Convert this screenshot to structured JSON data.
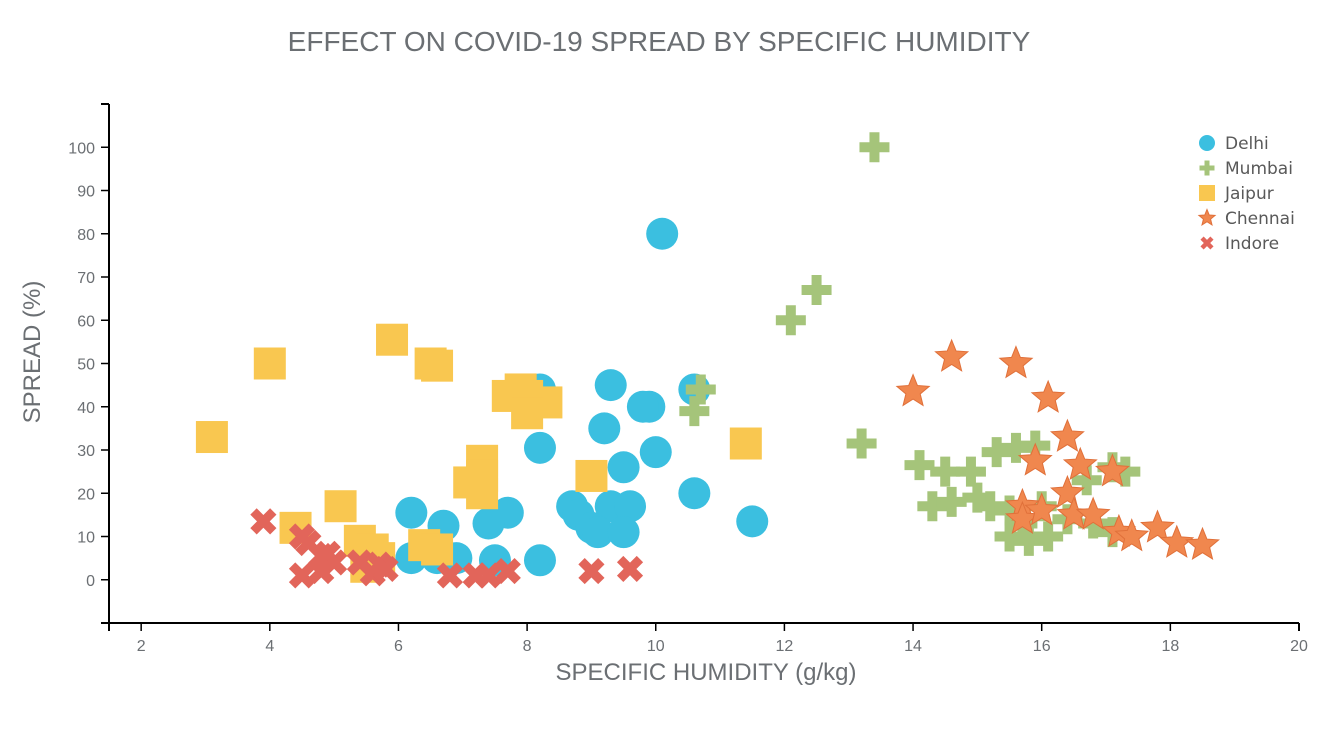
{
  "colors": {
    "Delhi": "#3bbfe0",
    "Mumbai": "#a5c47a",
    "Jaipur": "#f9c750",
    "Chennai": "#f0874e",
    "Indore": "#e2655a"
  },
  "chart_data": {
    "type": "scatter",
    "title": "EFFECT ON COVID-19 SPREAD BY SPECIFIC HUMIDITY",
    "xlabel": "SPECIFIC HUMIDITY (g/kg)",
    "ylabel": "SPREAD (%)",
    "xlim": [
      1.5,
      20
    ],
    "ylim": [
      -10,
      110
    ],
    "xticks": [
      2,
      4,
      6,
      8,
      10,
      12,
      14,
      16,
      18,
      20
    ],
    "yticks": [
      0,
      10,
      20,
      30,
      40,
      50,
      60,
      70,
      80,
      90,
      100
    ],
    "legend_position": "top-right",
    "grid": false,
    "series": [
      {
        "name": "Delhi",
        "marker": "circle",
        "points": [
          [
            10.1,
            80
          ],
          [
            10.6,
            44
          ],
          [
            8.2,
            44
          ],
          [
            9.3,
            45
          ],
          [
            9.2,
            35
          ],
          [
            9.9,
            40
          ],
          [
            9.8,
            40
          ],
          [
            10.0,
            29.5
          ],
          [
            8.2,
            30.5
          ],
          [
            9.5,
            26
          ],
          [
            10.6,
            20
          ],
          [
            11.5,
            13.5
          ],
          [
            8.7,
            17
          ],
          [
            9.3,
            17
          ],
          [
            9.6,
            17
          ],
          [
            8.8,
            15
          ],
          [
            9.0,
            12
          ],
          [
            9.1,
            11
          ],
          [
            9.5,
            11
          ],
          [
            7.7,
            15.5
          ],
          [
            7.4,
            13
          ],
          [
            6.2,
            15.5
          ],
          [
            6.7,
            12.5
          ],
          [
            6.2,
            5
          ],
          [
            6.9,
            5
          ],
          [
            6.6,
            5
          ],
          [
            7.5,
            4.5
          ],
          [
            8.2,
            4.5
          ]
        ]
      },
      {
        "name": "Mumbai",
        "marker": "plus",
        "points": [
          [
            13.4,
            100
          ],
          [
            12.5,
            67
          ],
          [
            12.1,
            60
          ],
          [
            10.7,
            44
          ],
          [
            10.6,
            39
          ],
          [
            13.2,
            31.5
          ],
          [
            14.1,
            26.5
          ],
          [
            14.5,
            25
          ],
          [
            14.9,
            25
          ],
          [
            15.3,
            29.5
          ],
          [
            15.6,
            30.5
          ],
          [
            15.9,
            31
          ],
          [
            16.7,
            23
          ],
          [
            17.1,
            26
          ],
          [
            17.3,
            25
          ],
          [
            14.3,
            17
          ],
          [
            14.6,
            18
          ],
          [
            15.0,
            19
          ],
          [
            15.2,
            17
          ],
          [
            15.5,
            16
          ],
          [
            16.0,
            17
          ],
          [
            16.4,
            14
          ],
          [
            16.8,
            13
          ],
          [
            15.5,
            10
          ],
          [
            15.8,
            9
          ],
          [
            16.1,
            10
          ],
          [
            17.1,
            11
          ],
          [
            15.7,
            13
          ]
        ]
      },
      {
        "name": "Jaipur",
        "marker": "square",
        "points": [
          [
            3.1,
            33
          ],
          [
            4.0,
            50
          ],
          [
            5.9,
            55.5
          ],
          [
            6.5,
            50
          ],
          [
            6.6,
            49.5
          ],
          [
            7.9,
            44
          ],
          [
            8.0,
            42.5
          ],
          [
            7.7,
            42.5
          ],
          [
            8.3,
            41
          ],
          [
            8.0,
            38.5
          ],
          [
            9.0,
            24
          ],
          [
            11.4,
            31.5
          ],
          [
            7.3,
            27.5
          ],
          [
            7.3,
            24
          ],
          [
            7.1,
            22.5
          ],
          [
            7.3,
            20
          ],
          [
            4.4,
            12
          ],
          [
            5.1,
            17
          ],
          [
            5.4,
            9
          ],
          [
            5.6,
            7
          ],
          [
            5.7,
            5
          ],
          [
            6.4,
            8
          ],
          [
            6.6,
            7
          ],
          [
            5.5,
            3
          ]
        ]
      },
      {
        "name": "Chennai",
        "marker": "star",
        "points": [
          [
            14.6,
            51.5
          ],
          [
            15.6,
            50
          ],
          [
            14.0,
            43.5
          ],
          [
            16.1,
            42
          ],
          [
            16.4,
            33
          ],
          [
            15.9,
            27.5
          ],
          [
            16.6,
            26.5
          ],
          [
            17.1,
            25
          ],
          [
            16.4,
            20
          ],
          [
            15.7,
            17
          ],
          [
            15.7,
            14
          ],
          [
            16.0,
            16
          ],
          [
            16.5,
            15
          ],
          [
            16.8,
            15
          ],
          [
            17.2,
            11
          ],
          [
            17.4,
            10
          ],
          [
            17.8,
            12
          ],
          [
            18.1,
            8.5
          ],
          [
            18.5,
            8
          ]
        ]
      },
      {
        "name": "Indore",
        "marker": "x",
        "points": [
          [
            3.9,
            13.5
          ],
          [
            4.5,
            10
          ],
          [
            4.6,
            8.5
          ],
          [
            4.5,
            1
          ],
          [
            4.8,
            2
          ],
          [
            4.8,
            5.5
          ],
          [
            5.0,
            4
          ],
          [
            4.9,
            6
          ],
          [
            5.4,
            4
          ],
          [
            5.7,
            3.5
          ],
          [
            5.6,
            1.5
          ],
          [
            5.8,
            2.5
          ],
          [
            6.8,
            1
          ],
          [
            7.2,
            1
          ],
          [
            7.4,
            1
          ],
          [
            7.7,
            2
          ],
          [
            9.0,
            2
          ],
          [
            9.6,
            2.5
          ]
        ]
      }
    ]
  }
}
